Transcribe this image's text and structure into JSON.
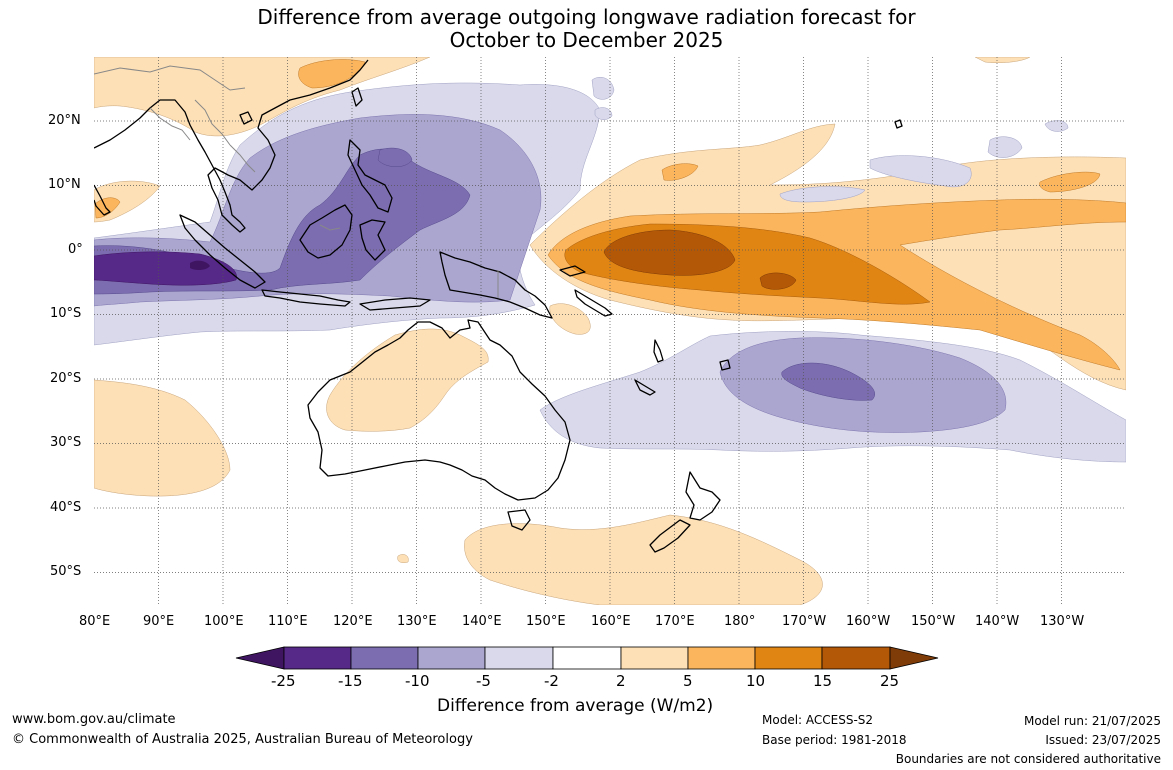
{
  "title": {
    "line1": "Difference from average outgoing longwave radiation forecast for",
    "line2": "October to December 2025"
  },
  "map": {
    "region": "Indian Ocean – Maritime Continent – Australia – Western/Central Pacific",
    "projection": "equirectangular",
    "lon_labels": [
      "80°E",
      "90°E",
      "100°E",
      "110°E",
      "120°E",
      "130°E",
      "140°E",
      "150°E",
      "160°E",
      "170°E",
      "180°",
      "170°W",
      "160°W",
      "150°W",
      "140°W",
      "130°W"
    ],
    "lat_labels": [
      "20°N",
      "10°N",
      "0°",
      "10°S",
      "20°S",
      "30°S",
      "40°S",
      "50°S"
    ],
    "coastline_color": "#000000",
    "border_color": "#888888"
  },
  "colorbar": {
    "label": "Difference from average (W/m2)",
    "ticks": [
      "-25",
      "-15",
      "-10",
      "-5",
      "-2",
      "2",
      "5",
      "10",
      "15",
      "25"
    ],
    "colors": [
      "#3f1562",
      "#562888",
      "#7c6db0",
      "#aaa6d0",
      "#d9d9eb",
      "#ffffff",
      "#fde0b6",
      "#fbb55c",
      "#e08514",
      "#b35806",
      "#7f3b08"
    ]
  },
  "footer": {
    "url": "www.bom.gov.au/climate",
    "copyright": "© Commonwealth of Australia 2025, Australian Bureau of Meteorology",
    "model": "Model: ACCESS-S2",
    "base_period": "Base period: 1981-2018",
    "model_run": "Model run: 21/07/2025",
    "issued": "Issued: 23/07/2025",
    "disclaimer": "Boundaries are not considered authoritative"
  }
}
